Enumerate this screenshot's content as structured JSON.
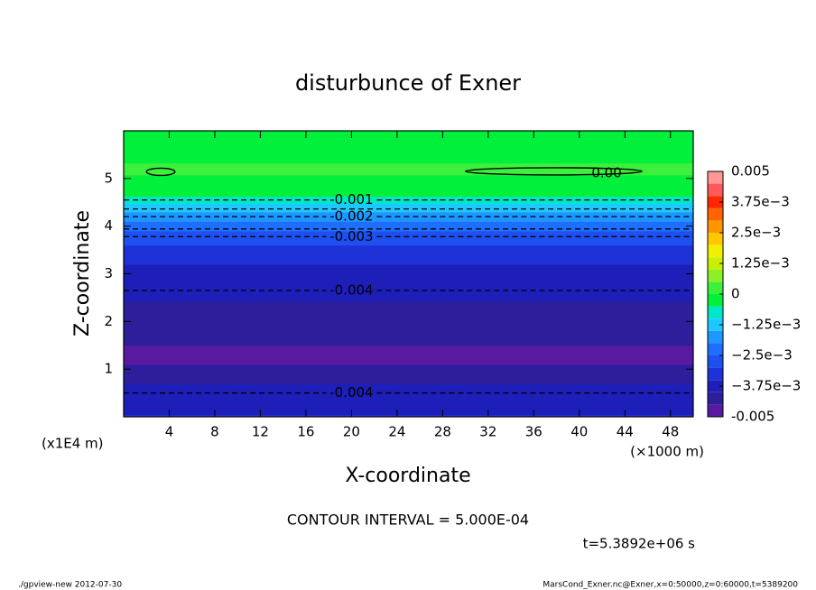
{
  "chart_data": {
    "type": "contour",
    "title": "disturbunce of Exner",
    "xlabel": "X-coordinate",
    "ylabel": "Z-coordinate",
    "x_unit": "(×1000 m)",
    "y_unit": "(x1E4 m)",
    "xlim": [
      0,
      50
    ],
    "ylim": [
      0,
      6
    ],
    "xticks": [
      4,
      8,
      12,
      16,
      20,
      24,
      28,
      32,
      36,
      40,
      44,
      48
    ],
    "yticks": [
      1,
      2,
      3,
      4,
      5
    ],
    "profile": {
      "z": [
        0,
        0.1,
        0.3,
        0.5,
        0.9,
        1.3,
        1.7,
        2.2,
        2.65,
        3.0,
        3.4,
        3.8,
        4.0,
        4.2,
        4.4,
        4.55,
        4.7,
        5.0,
        5.15,
        5.5,
        6.0
      ],
      "values": [
        -0.0033,
        -0.0036,
        -0.0039,
        -0.004,
        -0.0045,
        -0.0047,
        -0.0045,
        -0.0042,
        -0.004,
        -0.0038,
        -0.0035,
        -0.003,
        -0.0025,
        -0.002,
        -0.0015,
        -0.001,
        -0.0005,
        -0.0001,
        0,
        -0.0001,
        -0.0002
      ]
    },
    "contours": [
      {
        "value": -0.001,
        "z": 4.55,
        "label": "-0.001"
      },
      {
        "value": -0.0015,
        "z": 4.36
      },
      {
        "value": -0.002,
        "z": 4.2,
        "label": "-0.002"
      },
      {
        "value": -0.0025,
        "z": 3.94
      },
      {
        "value": -0.003,
        "z": 3.78,
        "label": "-0.003"
      },
      {
        "value": -0.004,
        "z": 2.65,
        "label": "-0.004"
      },
      {
        "value": -0.004,
        "z": 0.5,
        "label": "-0.004"
      }
    ],
    "closed_contours": [
      {
        "value": 0,
        "x": [
          30,
          45.5
        ],
        "z": 5.15,
        "label": "0.00"
      },
      {
        "value": 0,
        "x": [
          2,
          4.5
        ],
        "z": 5.14
      }
    ],
    "colorbar": {
      "levels": [
        -0.005,
        -0.0045,
        -0.004,
        -0.0035,
        -0.003,
        -0.0025,
        -0.002,
        -0.0015,
        -0.001,
        -0.0005,
        0,
        0.0005,
        0.001,
        0.0015,
        0.002,
        0.0025,
        0.003,
        0.0035,
        0.004,
        0.0045,
        0.005
      ],
      "colors": [
        "#5a1aa0",
        "#2d1e9b",
        "#1e1eb9",
        "#1e32d7",
        "#1e50f0",
        "#1e6eff",
        "#1e96ff",
        "#1ec8ff",
        "#00e6c8",
        "#00f03c",
        "#3cf03c",
        "#8cf028",
        "#c8f000",
        "#f0f000",
        "#ffc800",
        "#ff9600",
        "#ff6400",
        "#ff2800",
        "#ff5a5a",
        "#ff9696"
      ],
      "ticks": [
        -0.005,
        {
          "value": -0.00375,
          "label": "−3.75e−3"
        },
        {
          "value": -0.0025,
          "label": "−2.5e−3"
        },
        {
          "value": -0.00125,
          "label": "−1.25e−3"
        },
        0,
        {
          "value": 0.00125,
          "label": "1.25e−3"
        },
        {
          "value": 0.0025,
          "label": "2.5e−3"
        },
        {
          "value": 0.00375,
          "label": "3.75e−3"
        },
        0.005
      ]
    },
    "contour_interval": "CONTOUR INTERVAL = 5.000E-04",
    "time_label": "t=5.3892e+06 s",
    "footer_left": "./gpview-new   2012-07-30",
    "footer_right": "MarsCond_Exner.nc@Exner,x=0:50000,z=0:60000,t=5389200"
  }
}
